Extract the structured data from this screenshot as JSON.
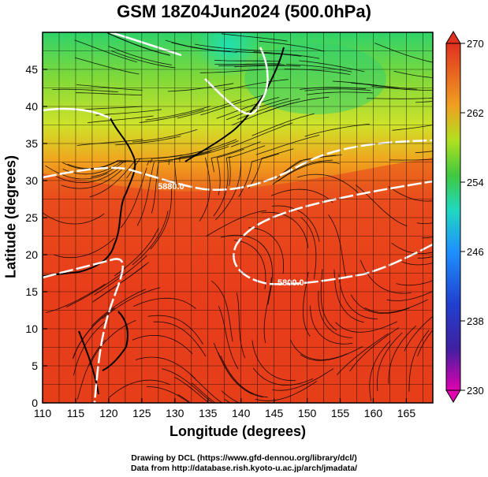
{
  "title": "GSM 18Z04Jun2024 (500.0hPa)",
  "x_axis": {
    "label": "Longitude (degrees)",
    "ticks": [
      110,
      115,
      120,
      125,
      130,
      135,
      140,
      145,
      150,
      155,
      160,
      165
    ],
    "range": [
      110,
      169
    ]
  },
  "y_axis": {
    "label": "Latitude  (degrees)",
    "ticks": [
      0,
      5,
      10,
      15,
      20,
      25,
      30,
      35,
      40,
      45
    ],
    "range": [
      0,
      50
    ]
  },
  "colorbar": {
    "ticks": [
      230,
      238,
      246,
      254,
      262,
      270
    ],
    "range": [
      230,
      270
    ],
    "colors": [
      "#e000b0",
      "#2020a0",
      "#1e90ff",
      "#20d8c0",
      "#40c840",
      "#b0e020",
      "#f0a020",
      "#e03020"
    ]
  },
  "contours": [
    {
      "label": "5880.0"
    },
    {
      "label": "5800.0"
    }
  ],
  "credits": {
    "line1": "Drawing by DCL (https://www.gfd-dennou.org/library/dcl/)",
    "line2": "Data from http://database.rish.kyoto-u.ac.jp/arch/jmadata/"
  }
}
